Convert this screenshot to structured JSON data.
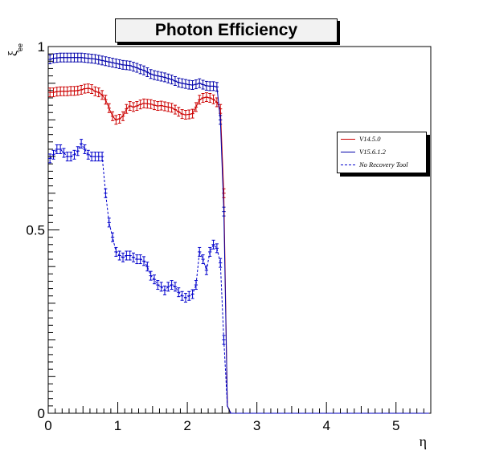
{
  "chart_data": {
    "type": "line",
    "title": "Photon Efficiency",
    "xlabel": "η",
    "ylabel": "ξ",
    "ylabel_subscript": "ee",
    "xlim": [
      0,
      5.5
    ],
    "ylim": [
      0,
      1
    ],
    "x_ticks": [
      "0",
      "1",
      "2",
      "3",
      "4",
      "5"
    ],
    "y_ticks": [
      "0",
      "0.5",
      "1"
    ],
    "grid": false,
    "legend_position": "right",
    "series": [
      {
        "name": "V14.5.0",
        "color": "#cc0000",
        "style": "solid",
        "x": [
          0.025,
          0.075,
          0.125,
          0.175,
          0.225,
          0.275,
          0.325,
          0.375,
          0.425,
          0.475,
          0.525,
          0.575,
          0.625,
          0.675,
          0.725,
          0.775,
          0.825,
          0.875,
          0.925,
          0.975,
          1.025,
          1.075,
          1.125,
          1.175,
          1.225,
          1.275,
          1.325,
          1.375,
          1.425,
          1.475,
          1.525,
          1.575,
          1.625,
          1.675,
          1.725,
          1.775,
          1.825,
          1.875,
          1.925,
          1.975,
          2.025,
          2.075,
          2.125,
          2.175,
          2.225,
          2.275,
          2.325,
          2.375,
          2.425,
          2.475,
          2.525,
          2.575,
          2.625,
          2.675,
          2.725,
          2.775,
          2.825,
          2.875,
          2.925,
          2.975,
          3.025,
          3.075,
          3.125,
          3.175,
          3.225,
          3.275,
          3.325,
          3.375,
          3.425,
          3.475,
          3.525,
          3.575,
          3.625,
          3.675,
          3.725,
          3.775,
          3.825,
          3.875,
          3.925,
          3.975,
          4.025,
          4.075,
          4.125,
          4.175,
          4.225,
          4.275,
          4.325,
          4.375,
          4.425,
          4.475,
          4.525,
          4.575,
          4.625,
          4.675,
          4.725,
          4.775,
          4.825,
          4.875,
          4.925,
          4.975,
          5.025,
          5.075,
          5.125,
          5.175,
          5.225,
          5.275,
          5.325,
          5.375,
          5.425,
          5.475
        ],
        "values": [
          0.875,
          0.875,
          0.877,
          0.878,
          0.878,
          0.878,
          0.879,
          0.879,
          0.88,
          0.882,
          0.885,
          0.886,
          0.884,
          0.878,
          0.875,
          0.868,
          0.855,
          0.832,
          0.81,
          0.8,
          0.803,
          0.81,
          0.83,
          0.838,
          0.835,
          0.838,
          0.842,
          0.845,
          0.844,
          0.843,
          0.84,
          0.838,
          0.839,
          0.837,
          0.835,
          0.833,
          0.828,
          0.822,
          0.816,
          0.814,
          0.815,
          0.817,
          0.835,
          0.855,
          0.86,
          0.862,
          0.86,
          0.856,
          0.848,
          0.83,
          0.6,
          0.02,
          0,
          0,
          0,
          0,
          0,
          0,
          0,
          0,
          0,
          0,
          0,
          0,
          0,
          0,
          0,
          0,
          0,
          0,
          0,
          0,
          0,
          0,
          0,
          0,
          0,
          0,
          0,
          0,
          0,
          0,
          0,
          0,
          0,
          0,
          0,
          0,
          0,
          0,
          0,
          0,
          0,
          0,
          0,
          0,
          0,
          0,
          0,
          0,
          0,
          0,
          0,
          0,
          0,
          0,
          0,
          0,
          0,
          0
        ]
      },
      {
        "name": "V15.6.1.2",
        "color": "#0000aa",
        "style": "solid",
        "x": [
          0.025,
          0.075,
          0.125,
          0.175,
          0.225,
          0.275,
          0.325,
          0.375,
          0.425,
          0.475,
          0.525,
          0.575,
          0.625,
          0.675,
          0.725,
          0.775,
          0.825,
          0.875,
          0.925,
          0.975,
          1.025,
          1.075,
          1.125,
          1.175,
          1.225,
          1.275,
          1.325,
          1.375,
          1.425,
          1.475,
          1.525,
          1.575,
          1.625,
          1.675,
          1.725,
          1.775,
          1.825,
          1.875,
          1.925,
          1.975,
          2.025,
          2.075,
          2.125,
          2.175,
          2.225,
          2.275,
          2.325,
          2.375,
          2.425,
          2.475,
          2.525,
          2.575,
          2.625,
          2.675,
          2.725,
          2.775,
          2.825,
          2.875,
          2.925,
          2.975,
          3.025,
          3.075,
          3.125,
          3.175,
          3.225,
          3.275,
          3.325,
          3.375,
          3.425,
          3.475,
          3.525,
          3.575,
          3.625,
          3.675,
          3.725,
          3.775,
          3.825,
          3.875,
          3.925,
          3.975,
          4.025,
          4.075,
          4.125,
          4.175,
          4.225,
          4.275,
          4.325,
          4.375,
          4.425,
          4.475,
          4.525,
          4.575,
          4.625,
          4.675,
          4.725,
          4.775,
          4.825,
          4.875,
          4.925,
          4.975,
          5.025,
          5.075,
          5.125,
          5.175,
          5.225,
          5.275,
          5.325,
          5.375,
          5.425,
          5.475
        ],
        "values": [
          0.965,
          0.968,
          0.969,
          0.97,
          0.97,
          0.97,
          0.97,
          0.97,
          0.97,
          0.97,
          0.969,
          0.968,
          0.967,
          0.966,
          0.964,
          0.962,
          0.96,
          0.958,
          0.956,
          0.954,
          0.952,
          0.95,
          0.949,
          0.948,
          0.945,
          0.942,
          0.938,
          0.935,
          0.93,
          0.925,
          0.922,
          0.92,
          0.918,
          0.916,
          0.913,
          0.91,
          0.906,
          0.902,
          0.9,
          0.898,
          0.896,
          0.895,
          0.897,
          0.9,
          0.896,
          0.893,
          0.892,
          0.892,
          0.89,
          0.8,
          0.55,
          0.02,
          0,
          0,
          0,
          0,
          0,
          0,
          0,
          0,
          0,
          0,
          0,
          0,
          0,
          0,
          0,
          0,
          0,
          0,
          0,
          0,
          0,
          0,
          0,
          0,
          0,
          0,
          0,
          0,
          0,
          0,
          0,
          0,
          0,
          0,
          0,
          0,
          0,
          0,
          0,
          0,
          0,
          0,
          0,
          0,
          0,
          0,
          0,
          0,
          0,
          0,
          0,
          0,
          0,
          0,
          0,
          0,
          0,
          0
        ]
      },
      {
        "name": "No Recovery Tool",
        "color": "#0000cc",
        "style": "dashed",
        "x": [
          0.025,
          0.075,
          0.125,
          0.175,
          0.225,
          0.275,
          0.325,
          0.375,
          0.425,
          0.475,
          0.525,
          0.575,
          0.625,
          0.675,
          0.725,
          0.775,
          0.825,
          0.875,
          0.925,
          0.975,
          1.025,
          1.075,
          1.125,
          1.175,
          1.225,
          1.275,
          1.325,
          1.375,
          1.425,
          1.475,
          1.525,
          1.575,
          1.625,
          1.675,
          1.725,
          1.775,
          1.825,
          1.875,
          1.925,
          1.975,
          2.025,
          2.075,
          2.125,
          2.175,
          2.225,
          2.275,
          2.325,
          2.375,
          2.425,
          2.475,
          2.525,
          2.575,
          2.625,
          2.675,
          2.725,
          2.775,
          2.825,
          2.875,
          2.925,
          2.975,
          3.025,
          3.075,
          3.125,
          3.175,
          3.225,
          3.275,
          3.325,
          3.375,
          3.425,
          3.475,
          3.525,
          3.575,
          3.625,
          3.675,
          3.725,
          3.775,
          3.825,
          3.875,
          3.925,
          3.975,
          4.025,
          4.075,
          4.125,
          4.175,
          4.225,
          4.275,
          4.325,
          4.375,
          4.425,
          4.475,
          4.525,
          4.575,
          4.625,
          4.675,
          4.725,
          4.775,
          4.825,
          4.875,
          4.925,
          4.975,
          5.025,
          5.075,
          5.125,
          5.175,
          5.225,
          5.275,
          5.325,
          5.375,
          5.425,
          5.475
        ],
        "values": [
          0.695,
          0.705,
          0.72,
          0.72,
          0.71,
          0.7,
          0.7,
          0.705,
          0.715,
          0.735,
          0.72,
          0.705,
          0.7,
          0.7,
          0.7,
          0.7,
          0.6,
          0.52,
          0.48,
          0.44,
          0.43,
          0.425,
          0.43,
          0.43,
          0.425,
          0.42,
          0.42,
          0.415,
          0.4,
          0.375,
          0.365,
          0.35,
          0.345,
          0.335,
          0.345,
          0.35,
          0.345,
          0.33,
          0.32,
          0.315,
          0.32,
          0.325,
          0.35,
          0.44,
          0.42,
          0.39,
          0.44,
          0.46,
          0.45,
          0.41,
          0.2,
          0.02,
          0,
          0,
          0,
          0,
          0,
          0,
          0,
          0,
          0,
          0,
          0,
          0,
          0,
          0,
          0,
          0,
          0,
          0,
          0,
          0,
          0,
          0,
          0,
          0,
          0,
          0,
          0,
          0,
          0,
          0,
          0,
          0,
          0,
          0,
          0,
          0,
          0,
          0,
          0,
          0,
          0,
          0,
          0,
          0,
          0,
          0,
          0,
          0,
          0,
          0,
          0,
          0,
          0,
          0,
          0,
          0,
          0,
          0
        ]
      }
    ]
  }
}
